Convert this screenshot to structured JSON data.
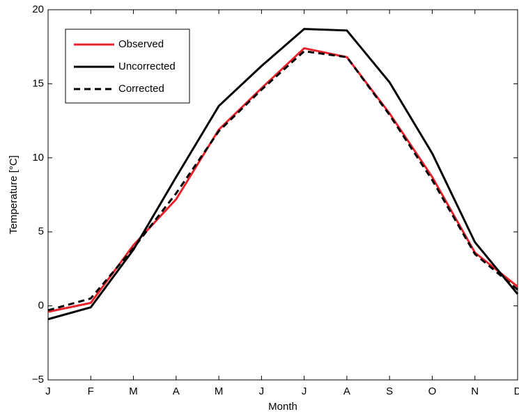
{
  "chart_data": {
    "type": "line",
    "x_label": "Month",
    "y_label": "Temperature [°C]",
    "categories": [
      "J",
      "F",
      "M",
      "A",
      "M",
      "J",
      "J",
      "A",
      "S",
      "O",
      "N",
      "D"
    ],
    "series": [
      {
        "name": "Observed",
        "color": "#e8212b",
        "dash": "solid",
        "values": [
          -0.4,
          0.2,
          4.1,
          7.2,
          11.9,
          14.7,
          17.4,
          16.8,
          13.0,
          8.7,
          3.6,
          1.3
        ]
      },
      {
        "name": "Uncorrected",
        "color": "#000000",
        "dash": "solid",
        "values": [
          -0.9,
          -0.1,
          3.8,
          8.7,
          13.5,
          16.2,
          18.7,
          18.6,
          15.1,
          10.3,
          4.3,
          0.8
        ]
      },
      {
        "name": "Corrected",
        "color": "#000000",
        "dash": "dashed",
        "values": [
          -0.3,
          0.5,
          3.9,
          7.6,
          11.8,
          14.6,
          17.2,
          16.8,
          12.9,
          8.5,
          3.5,
          1.1
        ]
      }
    ],
    "ylim": [
      -5,
      20
    ],
    "yticks": [
      {
        "value": -5,
        "label": "−5"
      },
      0,
      5,
      10,
      15,
      20
    ],
    "grid": false,
    "legend": "upper left"
  }
}
